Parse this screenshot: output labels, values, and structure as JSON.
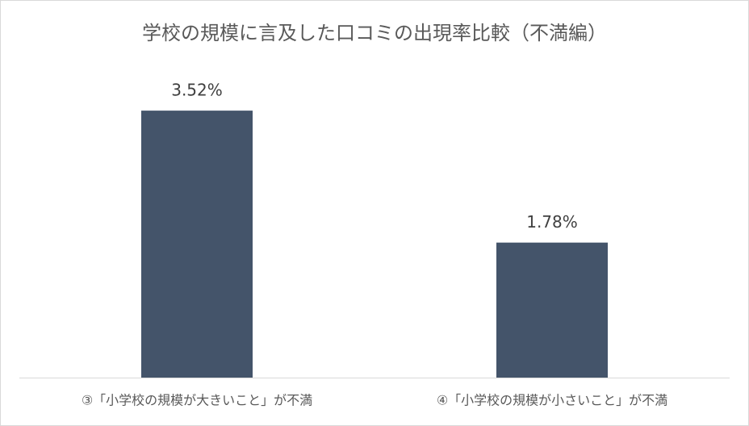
{
  "chart_data": {
    "type": "bar",
    "title": "学校の規模に言及した口コミの出現率比較（不満編）",
    "categories": [
      "③「小学校の規模が大きいこと」が不満",
      "④「小学校の規模が小さいこと」が不満"
    ],
    "values": [
      3.52,
      1.78
    ],
    "value_labels": [
      "3.52%",
      "1.78%"
    ],
    "color": "#44546a",
    "ylim": [
      0,
      4
    ]
  }
}
